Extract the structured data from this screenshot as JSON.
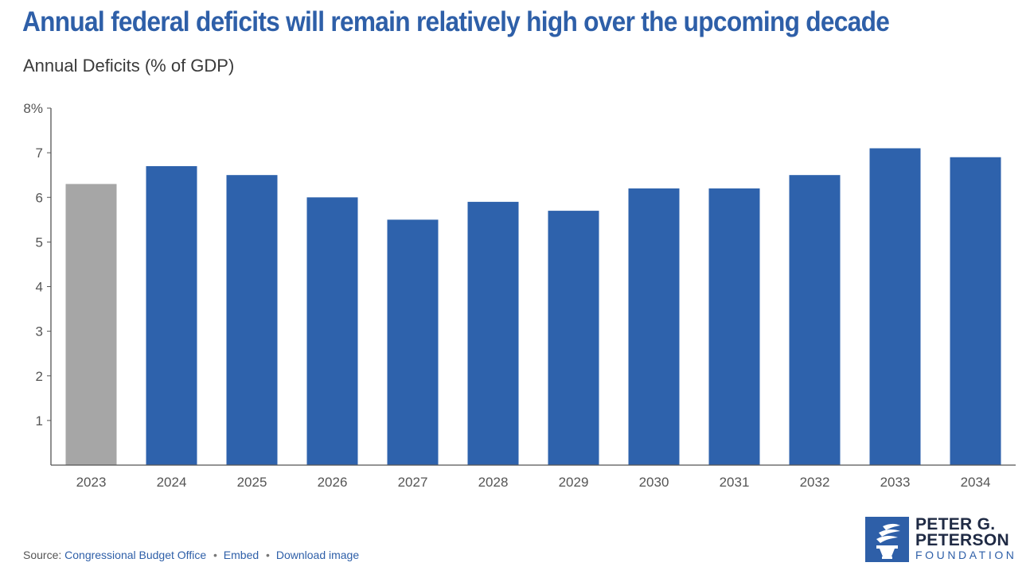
{
  "title": "Annual federal deficits will remain relatively high over the upcoming decade",
  "subtitle": "Annual Deficits (% of GDP)",
  "chart_data": {
    "type": "bar",
    "categories": [
      "2023",
      "2024",
      "2025",
      "2026",
      "2027",
      "2028",
      "2029",
      "2030",
      "2031",
      "2032",
      "2033",
      "2034"
    ],
    "values": [
      6.3,
      6.7,
      6.5,
      6.0,
      5.5,
      5.9,
      5.7,
      6.2,
      6.2,
      6.5,
      7.1,
      6.9
    ],
    "ylim": [
      0,
      8
    ],
    "yticks": [
      "",
      "1",
      "2",
      "3",
      "4",
      "5",
      "6",
      "7",
      "8%"
    ],
    "grid": false,
    "colors": {
      "actual": "#a6a6a6",
      "projected": "#2e62ac"
    },
    "actual_categories": [
      "2023"
    ]
  },
  "footer": {
    "source_label": "Source: ",
    "source_link": "Congressional Budget Office",
    "embed": "Embed",
    "download": "Download image"
  },
  "logo": {
    "line1": "PETER G.",
    "line2": "PETERSON",
    "line3": "FOUNDATION",
    "icon": "torch-icon"
  }
}
